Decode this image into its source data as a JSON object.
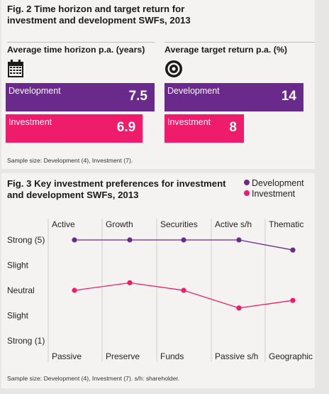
{
  "fig2": {
    "title_line1": "Fig. 2 Time horizon and target return for",
    "title_line2": "investment and development SWFs, 2013",
    "left_heading": "Average time horizon p.a. (years)",
    "right_heading": "Average target return p.a. (%)",
    "left_icon": "calendar-icon",
    "right_icon": "target-icon",
    "note": "Sample size: Development (4), Investment (7)."
  },
  "fig3": {
    "title_line1": "Fig. 3 Key investment preferences for investment",
    "title_line2": "and development SWFs, 2013",
    "legend": [
      "Development",
      "Investment"
    ],
    "note": "Sample size: Development (4), Investment (7). s/h: shareholder."
  },
  "colors": {
    "development": "#6a2a8c",
    "investment": "#ef1c6c"
  },
  "chart_data": [
    {
      "type": "bar",
      "title": "Average time horizon p.a. (years)",
      "orientation": "horizontal",
      "categories": [
        "Development",
        "Investment"
      ],
      "values": [
        7.5,
        6.9
      ],
      "value_labels": [
        "7.5",
        "6.9"
      ]
    },
    {
      "type": "bar",
      "title": "Average target return p.a. (%)",
      "orientation": "horizontal",
      "categories": [
        "Development",
        "Investment"
      ],
      "values": [
        14,
        8
      ],
      "value_labels": [
        "14",
        "8"
      ]
    },
    {
      "type": "line",
      "title": "Fig. 3 Key investment preferences for investment and development SWFs, 2013",
      "top_labels": [
        "Active",
        "Growth",
        "Securities",
        "Active s/h",
        "Thematic"
      ],
      "bottom_labels": [
        "Passive",
        "Preserve",
        "Funds",
        "Passive s/h",
        "Geographic"
      ],
      "y_tick_labels": [
        "Strong (5)",
        "Slight",
        "Neutral",
        "Slight",
        "Strong (1)"
      ],
      "ylim": [
        1,
        5
      ],
      "grid": true,
      "legend": "top-right",
      "series": [
        {
          "name": "Development",
          "values": [
            5.0,
            5.0,
            5.0,
            5.0,
            4.6
          ]
        },
        {
          "name": "Investment",
          "values": [
            3.0,
            3.3,
            3.0,
            2.3,
            2.6
          ]
        }
      ]
    }
  ]
}
